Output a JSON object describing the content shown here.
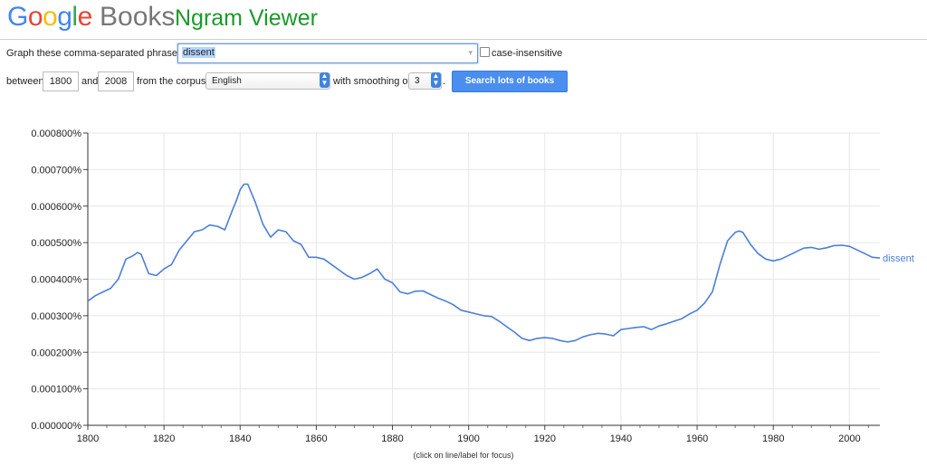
{
  "header": {
    "logo_letters": [
      {
        "ch": "G",
        "color": "#4285f4"
      },
      {
        "ch": "o",
        "color": "#ea4335"
      },
      {
        "ch": "o",
        "color": "#fbbc05"
      },
      {
        "ch": "g",
        "color": "#4285f4"
      },
      {
        "ch": "l",
        "color": "#34a853"
      },
      {
        "ch": "e",
        "color": "#ea4335"
      }
    ],
    "books": "Books",
    "title": "Ngram Viewer"
  },
  "form": {
    "phrases_label": "Graph these comma-separated phrases:",
    "phrases_value": "dissent",
    "case_insensitive_label": "case-insensitive",
    "between_label": "between",
    "start_year": "1800",
    "and_label": "and",
    "end_year": "2008",
    "corpus_label": "from the corpus",
    "corpus_value": "English",
    "smoothing_label": "with smoothing of",
    "smoothing_value": "3",
    "period": ".",
    "search_button": "Search lots of books"
  },
  "note": "(click on line/label for focus)",
  "chart_data": {
    "type": "line",
    "x_ticks": [
      1800,
      1820,
      1840,
      1860,
      1880,
      1900,
      1920,
      1940,
      1960,
      1980,
      2000
    ],
    "y_ticks": [
      "0.000000%",
      "0.000100%",
      "0.000200%",
      "0.000300%",
      "0.000400%",
      "0.000500%",
      "0.000600%",
      "0.000700%",
      "0.000800%"
    ],
    "xlim": [
      1800,
      2008
    ],
    "ylim": [
      0,
      0.0008
    ],
    "grid": true,
    "series": [
      {
        "name": "dissent",
        "color": "#4a7fd8",
        "x": [
          1800,
          1802,
          1804,
          1806,
          1808,
          1810,
          1812,
          1813,
          1814,
          1816,
          1818,
          1820,
          1822,
          1824,
          1826,
          1828,
          1830,
          1832,
          1834,
          1836,
          1838,
          1839,
          1840,
          1841,
          1842,
          1844,
          1846,
          1848,
          1850,
          1852,
          1854,
          1856,
          1858,
          1860,
          1862,
          1864,
          1866,
          1868,
          1870,
          1872,
          1874,
          1876,
          1878,
          1880,
          1882,
          1884,
          1886,
          1888,
          1890,
          1892,
          1894,
          1896,
          1898,
          1900,
          1902,
          1904,
          1906,
          1908,
          1910,
          1912,
          1914,
          1916,
          1918,
          1920,
          1922,
          1924,
          1926,
          1928,
          1930,
          1932,
          1934,
          1936,
          1938,
          1940,
          1942,
          1944,
          1946,
          1948,
          1950,
          1952,
          1954,
          1956,
          1958,
          1960,
          1962,
          1964,
          1966,
          1968,
          1970,
          1971,
          1972,
          1974,
          1976,
          1978,
          1980,
          1982,
          1984,
          1986,
          1988,
          1990,
          1992,
          1994,
          1996,
          1998,
          2000,
          2002,
          2004,
          2006,
          2008
        ],
        "y": [
          0.00034,
          0.000355,
          0.000365,
          0.000375,
          0.0004,
          0.000455,
          0.000465,
          0.000473,
          0.000468,
          0.000415,
          0.00041,
          0.000428,
          0.00044,
          0.00048,
          0.000505,
          0.00053,
          0.000535,
          0.000548,
          0.000545,
          0.000535,
          0.00059,
          0.000615,
          0.000645,
          0.00066,
          0.00066,
          0.00061,
          0.00055,
          0.000515,
          0.000535,
          0.00053,
          0.000505,
          0.000495,
          0.00046,
          0.00046,
          0.000455,
          0.00044,
          0.000425,
          0.00041,
          0.0004,
          0.000405,
          0.000415,
          0.000428,
          0.0004,
          0.00039,
          0.000365,
          0.00036,
          0.000367,
          0.000368,
          0.000358,
          0.000348,
          0.00034,
          0.00033,
          0.000315,
          0.00031,
          0.000305,
          0.0003,
          0.000298,
          0.000285,
          0.00027,
          0.000255,
          0.000238,
          0.000232,
          0.000238,
          0.00024,
          0.000238,
          0.000232,
          0.000228,
          0.000232,
          0.000242,
          0.000248,
          0.000252,
          0.00025,
          0.000245,
          0.000262,
          0.000265,
          0.000268,
          0.00027,
          0.000262,
          0.000272,
          0.000278,
          0.000285,
          0.000292,
          0.000305,
          0.000315,
          0.000335,
          0.000365,
          0.00044,
          0.000505,
          0.000528,
          0.000532,
          0.000528,
          0.000495,
          0.00047,
          0.000455,
          0.00045,
          0.000455,
          0.000465,
          0.000475,
          0.000485,
          0.000487,
          0.000482,
          0.000486,
          0.000492,
          0.000493,
          0.00049,
          0.00048,
          0.00047,
          0.00046,
          0.000458
        ]
      }
    ]
  }
}
